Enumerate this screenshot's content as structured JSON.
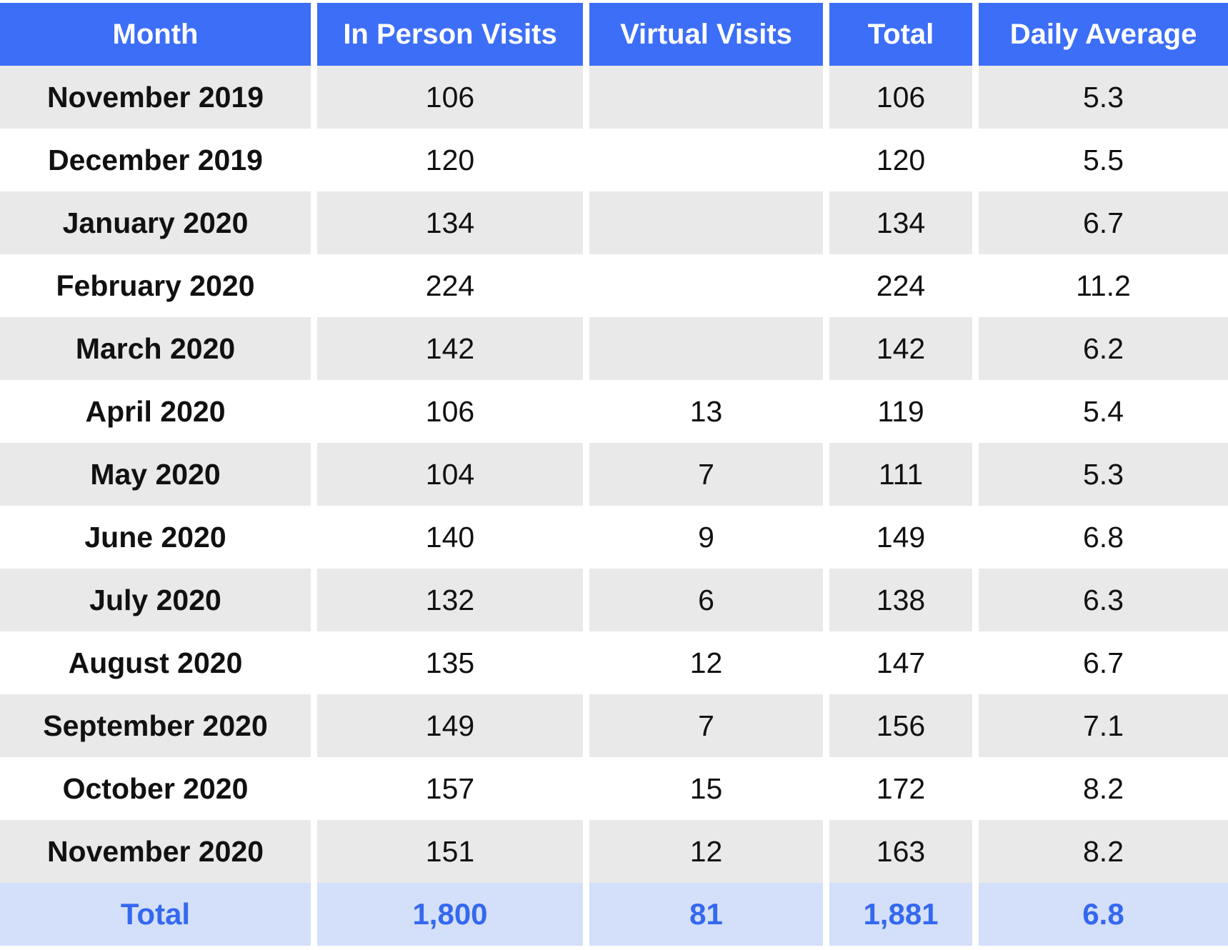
{
  "chart_data": {
    "type": "table",
    "columns": [
      "Month",
      "In Person Visits",
      "Virtual Visits",
      "Total",
      "Daily Average"
    ],
    "rows": [
      [
        "November 2019",
        "106",
        "",
        "106",
        "5.3"
      ],
      [
        "December 2019",
        "120",
        "",
        "120",
        "5.5"
      ],
      [
        "January 2020",
        "134",
        "",
        "134",
        "6.7"
      ],
      [
        "February 2020",
        "224",
        "",
        "224",
        "11.2"
      ],
      [
        "March 2020",
        "142",
        "",
        "142",
        "6.2"
      ],
      [
        "April 2020",
        "106",
        "13",
        "119",
        "5.4"
      ],
      [
        "May 2020",
        "104",
        "7",
        "111",
        "5.3"
      ],
      [
        "June 2020",
        "140",
        "9",
        "149",
        "6.8"
      ],
      [
        "July 2020",
        "132",
        "6",
        "138",
        "6.3"
      ],
      [
        "August 2020",
        "135",
        "12",
        "147",
        "6.7"
      ],
      [
        "September 2020",
        "149",
        "7",
        "156",
        "7.1"
      ],
      [
        "October 2020",
        "157",
        "15",
        "172",
        "8.2"
      ],
      [
        "November 2020",
        "151",
        "12",
        "163",
        "8.2"
      ]
    ],
    "total_row": [
      "Total",
      "1,800",
      "81",
      "1,881",
      "6.8"
    ],
    "colors": {
      "header_bg": "#3c6ef7",
      "header_text": "#ffffff",
      "stripe_bg": "#e9e9e9",
      "total_bg": "#d4dff9",
      "total_text": "#3468ef"
    }
  }
}
